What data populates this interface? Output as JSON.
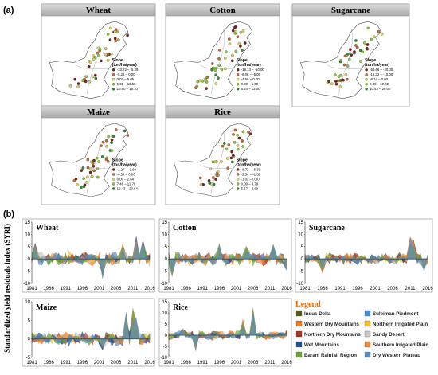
{
  "panel_a_label": "(a)",
  "panel_b_label": "(b)",
  "slope_legend_title": [
    "Slope",
    "(ton/ha/year)"
  ],
  "maps": [
    {
      "title": "Wheat",
      "classes": [
        "-33.22 – -5.29",
        "-5.28 – 0.00",
        "0.01 – 5.05",
        "5.06 – 10.59",
        "10.60 – 18.10"
      ]
    },
    {
      "title": "Cotton",
      "classes": [
        "-18.13 – -10.00",
        "-8.06 – -5.00",
        "-4.69 – 0.00",
        "0.00 – 5.00",
        "6.24 – 13.00"
      ]
    },
    {
      "title": "Sugarcane",
      "classes": [
        "-55.66 – -20.00",
        "-15.32 – -10.00",
        "-8.14 – 0.00",
        "0.00 – 10.00",
        "10.43 – 20.00"
      ]
    },
    {
      "title": "Maize",
      "classes": [
        "-1.27 – -0.60",
        "-0.54 – 0.00",
        "0.00 – 2.64",
        "7.46 – 11.78",
        "10.43 – 20.54"
      ]
    },
    {
      "title": "Rice",
      "classes": [
        "-8.72 – -6.39",
        "-2.54 – -1.50",
        "-1.02 – 0.00",
        "0.00 – 4.79",
        "5.57 – 8.89"
      ]
    }
  ],
  "class_colors": [
    "#7b1f14",
    "#c1693a",
    "#d9d163",
    "#8cc540",
    "#2f8b2f"
  ],
  "y_axis_label": "Standardized yield residuals index (SYRI)",
  "legend_title": "Legend",
  "regions": [
    {
      "name": "Indus Delta",
      "color": "#5a5a1e"
    },
    {
      "name": "Suleiman Piedmont",
      "color": "#4e8bd1"
    },
    {
      "name": "Western Dry Mountains",
      "color": "#ee7d22"
    },
    {
      "name": "Northern Irrigated Plain",
      "color": "#f2c22e"
    },
    {
      "name": "Northern Dry Mountains",
      "color": "#a43426"
    },
    {
      "name": "Sandy Desert",
      "color": "#c9c9c9"
    },
    {
      "name": "Wet Mountains",
      "color": "#1f4e96"
    },
    {
      "name": "Southern Irrigated Plain",
      "color": "#f08a3c"
    },
    {
      "name": "Barani Rainfall Region",
      "color": "#6fa33b"
    },
    {
      "name": "Dry Western Plateau",
      "color": "#5f8fb8"
    }
  ],
  "chart_data": [
    {
      "type": "area",
      "title": "Wheat",
      "x_range": [
        1981,
        2016
      ],
      "ylim": [
        -10,
        15
      ],
      "yticks": [
        -10,
        -5,
        0,
        5,
        10,
        15
      ],
      "xticks": [
        "1981",
        "1986",
        "1991",
        "1996",
        "2001",
        "2006",
        "2011",
        "2016"
      ],
      "seed": 11,
      "amp": 3.0,
      "spikes": [
        [
          1982,
          7
        ],
        [
          2008,
          6
        ],
        [
          2012,
          9
        ],
        [
          2014,
          8
        ],
        [
          2002,
          -8
        ]
      ]
    },
    {
      "type": "area",
      "title": "Cotton",
      "x_range": [
        1981,
        2016
      ],
      "ylim": [
        -10,
        15
      ],
      "yticks": [
        -10,
        -5,
        0,
        5,
        10,
        15
      ],
      "xticks": [
        "1981",
        "1986",
        "1991",
        "1996",
        "2001",
        "2006",
        "2011",
        "2016"
      ],
      "seed": 23,
      "amp": 3.0,
      "spikes": [
        [
          1982,
          -7
        ],
        [
          1996,
          6
        ],
        [
          2004,
          5
        ],
        [
          2012,
          6
        ],
        [
          2016,
          -5
        ]
      ]
    },
    {
      "type": "area",
      "title": "Sugarcane",
      "x_range": [
        1981,
        2016
      ],
      "ylim": [
        -10,
        15
      ],
      "yticks": [
        -10,
        -5,
        0,
        5,
        10,
        15
      ],
      "xticks": [
        "1981",
        "1986",
        "1991",
        "1996",
        "2001",
        "2006",
        "2011",
        "2016"
      ],
      "seed": 37,
      "amp": 2.6,
      "spikes": [
        [
          1986,
          -6
        ],
        [
          2011,
          9
        ],
        [
          2012,
          8
        ],
        [
          2015,
          -5
        ]
      ]
    },
    {
      "type": "area",
      "title": "Maize",
      "x_range": [
        1981,
        2016
      ],
      "ylim": [
        -5,
        10
      ],
      "yticks": [
        -5,
        0,
        5,
        10
      ],
      "xticks": [
        "1981",
        "1986",
        "1991",
        "1996",
        "2001",
        "2006",
        "2011",
        "2016"
      ],
      "seed": 41,
      "amp": 2.0,
      "spikes": [
        [
          2009,
          7
        ],
        [
          2011,
          8
        ],
        [
          2012,
          6
        ],
        [
          2002,
          -3
        ]
      ]
    },
    {
      "type": "area",
      "title": "Rice",
      "x_range": [
        1981,
        2016
      ],
      "ylim": [
        -10,
        15
      ],
      "yticks": [
        -10,
        -5,
        0,
        5,
        10,
        15
      ],
      "xticks": [
        "1981",
        "1986",
        "1991",
        "1996",
        "2001",
        "2006",
        "2011",
        "2016"
      ],
      "seed": 53,
      "amp": 2.2,
      "spikes": [
        [
          1989,
          -7
        ],
        [
          2003,
          7
        ],
        [
          2006,
          12
        ],
        [
          1985,
          3
        ]
      ]
    }
  ]
}
